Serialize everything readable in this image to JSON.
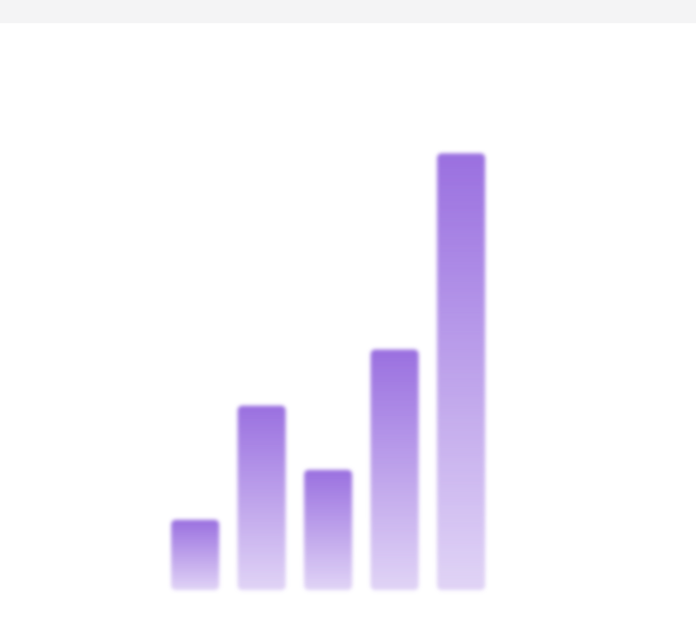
{
  "chart_data": {
    "type": "bar",
    "categories": [
      null,
      null,
      null,
      null,
      null
    ],
    "values": [
      79,
      207,
      135,
      270,
      490
    ],
    "color": "#9a70e0",
    "ylim": [
      0,
      500
    ]
  }
}
